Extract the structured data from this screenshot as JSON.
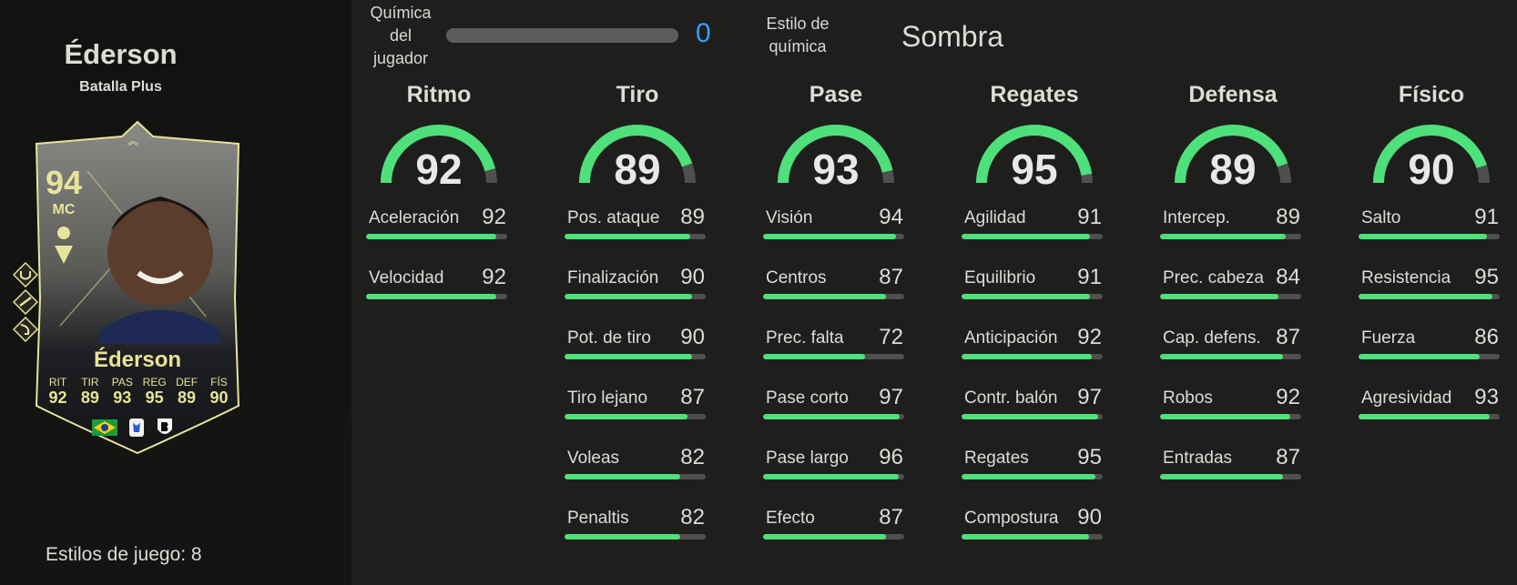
{
  "player": {
    "name": "Éderson",
    "variant": "Batalla Plus",
    "playstyles_text": "Estilos de juego: 8"
  },
  "card": {
    "rating": "94",
    "position": "MC",
    "name": "Éderson",
    "stats": [
      {
        "label": "RIT",
        "value": "92"
      },
      {
        "label": "TIR",
        "value": "89"
      },
      {
        "label": "PAS",
        "value": "93"
      },
      {
        "label": "REG",
        "value": "95"
      },
      {
        "label": "DEF",
        "value": "89"
      },
      {
        "label": "FÍS",
        "value": "90"
      }
    ],
    "icons": [
      "brazil-flag-icon",
      "serie-a-league-icon",
      "atalanta-club-badge-icon"
    ]
  },
  "chemistry": {
    "label": "Química del jugador",
    "value": "0",
    "fraction": 0,
    "style_label": "Estilo de química",
    "style_value": "Sombra",
    "value_color": "#3a9df0"
  },
  "colors": {
    "accent_green": "#4ee07a",
    "card_gold": "#e8e39a"
  },
  "categories": [
    {
      "title": "Ritmo",
      "value": "92",
      "attributes": [
        {
          "name": "Aceleración",
          "value": "92"
        },
        {
          "name": "Velocidad",
          "value": "92"
        }
      ]
    },
    {
      "title": "Tiro",
      "value": "89",
      "attributes": [
        {
          "name": "Pos. ataque",
          "value": "89"
        },
        {
          "name": "Finalización",
          "value": "90"
        },
        {
          "name": "Pot. de tiro",
          "value": "90"
        },
        {
          "name": "Tiro lejano",
          "value": "87"
        },
        {
          "name": "Voleas",
          "value": "82"
        },
        {
          "name": "Penaltis",
          "value": "82"
        }
      ]
    },
    {
      "title": "Pase",
      "value": "93",
      "attributes": [
        {
          "name": "Visión",
          "value": "94"
        },
        {
          "name": "Centros",
          "value": "87"
        },
        {
          "name": "Prec. falta",
          "value": "72"
        },
        {
          "name": "Pase corto",
          "value": "97"
        },
        {
          "name": "Pase largo",
          "value": "96"
        },
        {
          "name": "Efecto",
          "value": "87"
        }
      ]
    },
    {
      "title": "Regates",
      "value": "95",
      "attributes": [
        {
          "name": "Agilidad",
          "value": "91"
        },
        {
          "name": "Equilibrio",
          "value": "91"
        },
        {
          "name": "Anticipación",
          "value": "92"
        },
        {
          "name": "Contr. balón",
          "value": "97"
        },
        {
          "name": "Regates",
          "value": "95"
        },
        {
          "name": "Compostura",
          "value": "90"
        }
      ]
    },
    {
      "title": "Defensa",
      "value": "89",
      "attributes": [
        {
          "name": "Intercep.",
          "value": "89"
        },
        {
          "name": "Prec. cabeza",
          "value": "84"
        },
        {
          "name": "Cap. defens.",
          "value": "87"
        },
        {
          "name": "Robos",
          "value": "92"
        },
        {
          "name": "Entradas",
          "value": "87"
        }
      ]
    },
    {
      "title": "Físico",
      "value": "90",
      "attributes": [
        {
          "name": "Salto",
          "value": "91"
        },
        {
          "name": "Resistencia",
          "value": "95"
        },
        {
          "name": "Fuerza",
          "value": "86"
        },
        {
          "name": "Agresividad",
          "value": "93"
        }
      ]
    }
  ]
}
